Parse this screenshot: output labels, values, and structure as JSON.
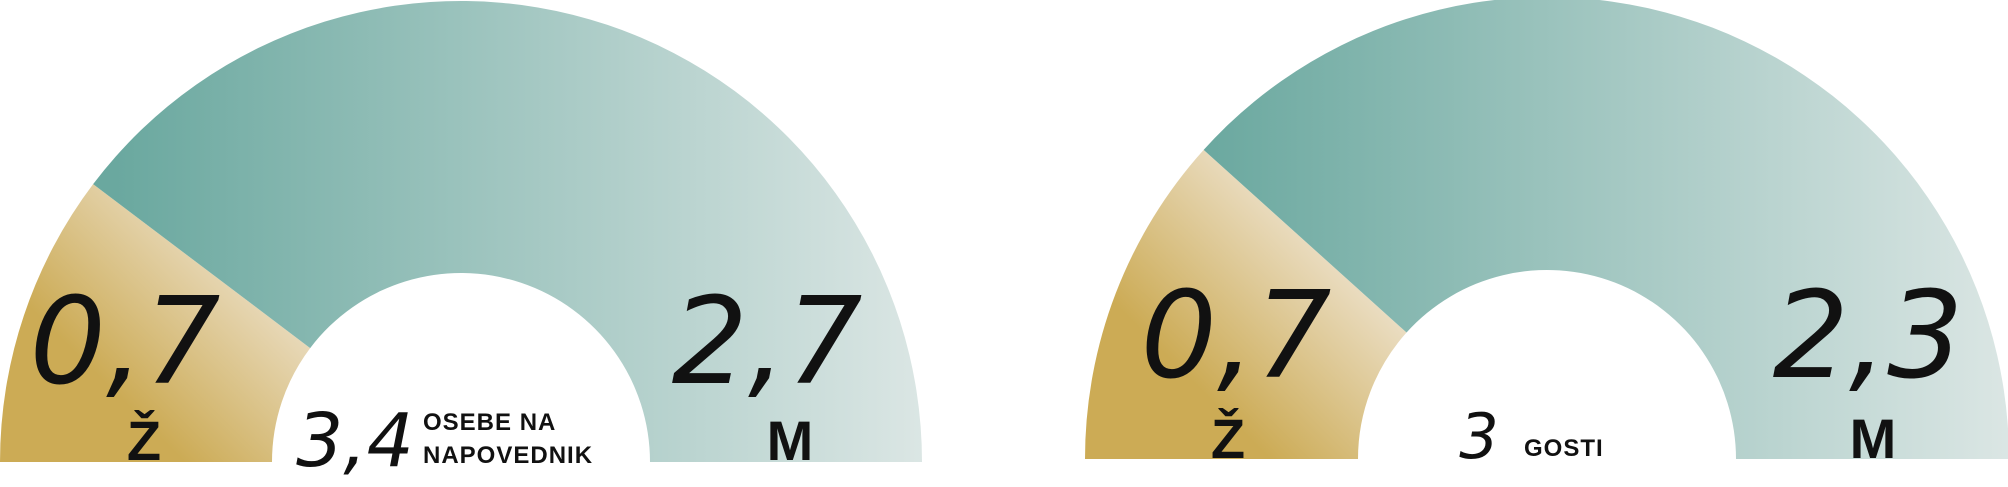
{
  "colors": {
    "women_light": "#f1e8da",
    "women_dark": "#ccab55",
    "men_dark": "#6aa89f",
    "men_light": "#dbe6e4",
    "text": "#111111"
  },
  "chart_data": [
    {
      "type": "pie",
      "variant": "semi-donut",
      "total_label": "3,4",
      "caption_lines": [
        "OSEBE NA",
        "NAPOVEDNIK"
      ],
      "categories": [
        "Ž",
        "M"
      ],
      "values": [
        0.7,
        2.7
      ],
      "value_labels": [
        "0,7",
        "2,7"
      ]
    },
    {
      "type": "pie",
      "variant": "semi-donut",
      "total_label": "3",
      "caption_lines": [
        "GOSTI"
      ],
      "categories": [
        "Ž",
        "M"
      ],
      "values": [
        0.7,
        2.3
      ],
      "value_labels": [
        "0,7",
        "2,3"
      ]
    }
  ]
}
